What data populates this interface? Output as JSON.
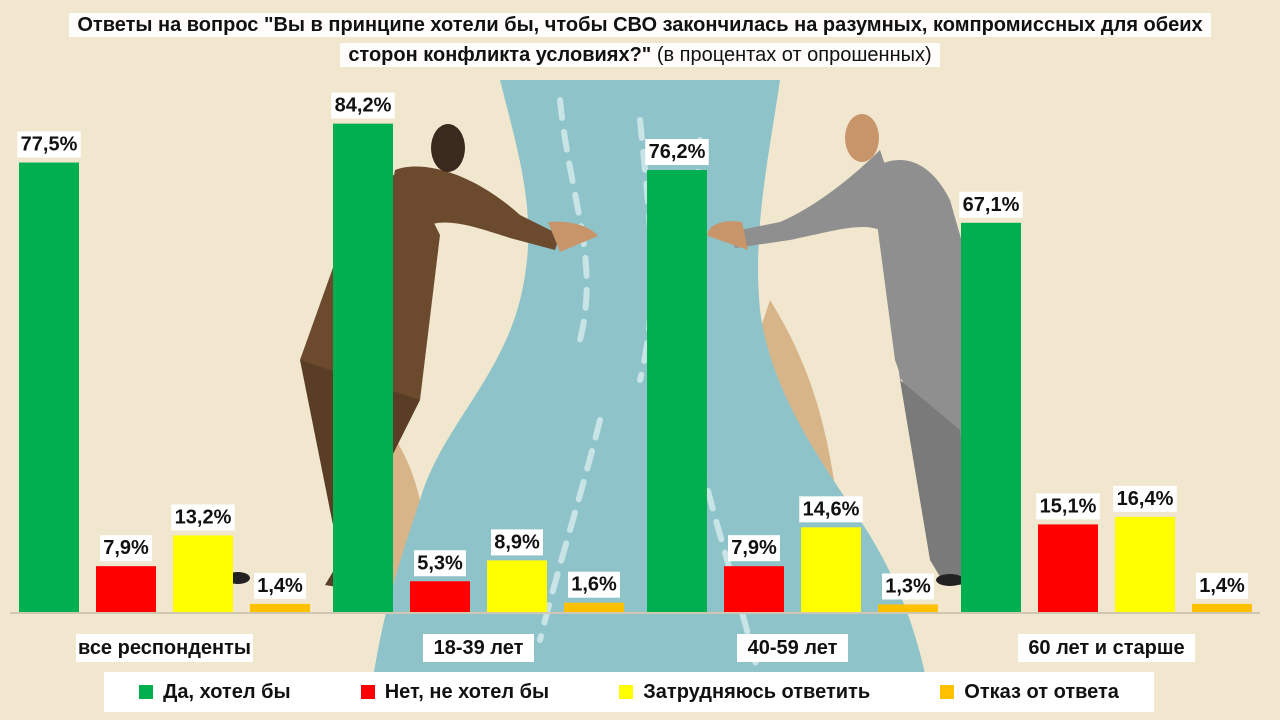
{
  "title": {
    "bold": "Ответы на вопрос \"Вы в принципе хотели бы, чтобы СВО закончилась на разумных, компромиссных для обеих сторон конфликта условиях?\"",
    "normal": " (в процентах от опрошенных)"
  },
  "colors": {
    "yes": "#00b050",
    "no": "#ff0000",
    "unsure": "#ffff00",
    "refuse": "#ffc000"
  },
  "chart_data": {
    "type": "bar",
    "title": "Ответы на вопрос \"Вы в принципе хотели бы, чтобы СВО закончилась на разумных, компромиссных для обеих сторон конфликта условиях?\" (в процентах от опрошенных)",
    "categories": [
      "все респонденты",
      "18-39 лет",
      "40-59 лет",
      "60 лет и старше"
    ],
    "series": [
      {
        "name": "Да, хотел бы",
        "color": "#00b050",
        "values": [
          77.5,
          84.2,
          76.2,
          67.1
        ],
        "labels": [
          "77,5%",
          "84,2%",
          "76,2%",
          "67,1%"
        ]
      },
      {
        "name": "Нет, не хотел бы",
        "color": "#ff0000",
        "values": [
          7.9,
          5.3,
          7.9,
          15.1
        ],
        "labels": [
          "7,9%",
          "5,3%",
          "7,9%",
          "15,1%"
        ]
      },
      {
        "name": "Затрудняюсь ответить",
        "color": "#ffff00",
        "values": [
          13.2,
          8.9,
          14.6,
          16.4
        ],
        "labels": [
          "13,2%",
          "8,9%",
          "14,6%",
          "16,4%"
        ]
      },
      {
        "name": "Отказ от ответа",
        "color": "#ffc000",
        "values": [
          1.4,
          1.6,
          1.3,
          1.4
        ],
        "labels": [
          "1,4%",
          "1,6%",
          "1,3%",
          "1,4%"
        ]
      }
    ],
    "ylim": [
      0,
      100
    ],
    "grid": false,
    "legend": "bottom"
  }
}
